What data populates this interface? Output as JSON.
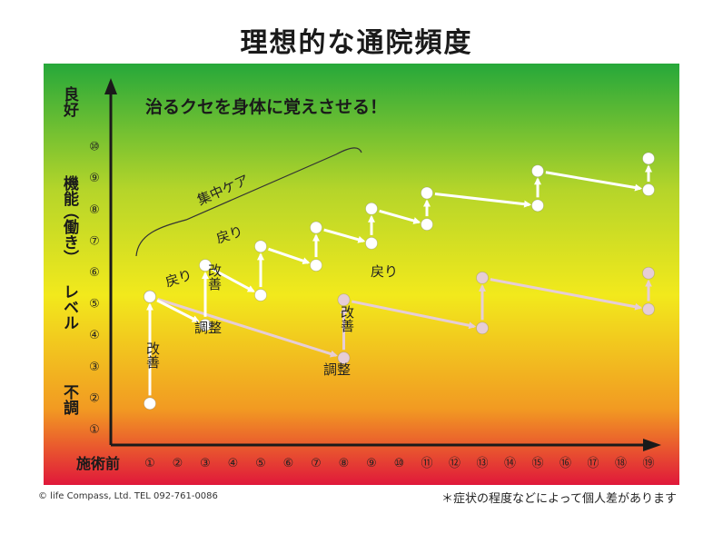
{
  "title": "理想的な通院頻度",
  "headline": "治るクセを身体に覚えさせる！",
  "y_axis": {
    "top_label": "良好",
    "middle_label": [
      "機能",
      "（働き）",
      "レベル"
    ],
    "bottom_label": "不調",
    "ticks": [
      "①",
      "②",
      "③",
      "④",
      "⑤",
      "⑥",
      "⑦",
      "⑧",
      "⑨",
      "⑩"
    ]
  },
  "x_axis": {
    "start_label": "施術前",
    "ticks": [
      "①",
      "②",
      "③",
      "④",
      "⑤",
      "⑥",
      "⑦",
      "⑧",
      "⑨",
      "⑩",
      "⑪",
      "⑫",
      "⑬",
      "⑭",
      "⑮",
      "⑯",
      "⑰",
      "⑱",
      "⑲"
    ]
  },
  "annotations": {
    "intensive_care": "集中ケア",
    "kaizen": "改善",
    "modori": "戻り",
    "chousei": "調整"
  },
  "series": {
    "ideal": [
      {
        "x": 1,
        "y": 5.2
      },
      {
        "x": 3,
        "y": 4.3
      },
      {
        "x": 3,
        "y": 6.2
      },
      {
        "x": 5,
        "y": 5.25
      },
      {
        "x": 5,
        "y": 6.8
      },
      {
        "x": 7,
        "y": 6.2
      },
      {
        "x": 7,
        "y": 7.4
      },
      {
        "x": 9,
        "y": 6.9
      },
      {
        "x": 9,
        "y": 8.0
      },
      {
        "x": 11,
        "y": 7.5
      },
      {
        "x": 11,
        "y": 8.5
      },
      {
        "x": 15,
        "y": 8.1
      },
      {
        "x": 15,
        "y": 9.2
      },
      {
        "x": 19,
        "y": 8.6
      },
      {
        "x": 19,
        "y": 9.6
      }
    ],
    "infrequent": [
      {
        "x": 1,
        "y": 5.2
      },
      {
        "x": 8,
        "y": 3.25
      },
      {
        "x": 8,
        "y": 5.1
      },
      {
        "x": 13,
        "y": 4.2
      },
      {
        "x": 13,
        "y": 5.8
      },
      {
        "x": 19,
        "y": 4.8
      },
      {
        "x": 19,
        "y": 5.95
      }
    ],
    "start": {
      "x": 1,
      "y": 1.8
    }
  },
  "footer": {
    "copyright": "© life Compass, Ltd. TEL 092-761-0086",
    "note": "＊症状の程度などによって個人差があります"
  },
  "colors": {
    "gradient_top": "#26a83a",
    "gradient_mid": "#f2e91c",
    "gradient_bottom": "#e0183a",
    "ideal_point": "#ffffff",
    "infrequent_point": "#e6cdd6",
    "axis": "#1a1a1a"
  }
}
